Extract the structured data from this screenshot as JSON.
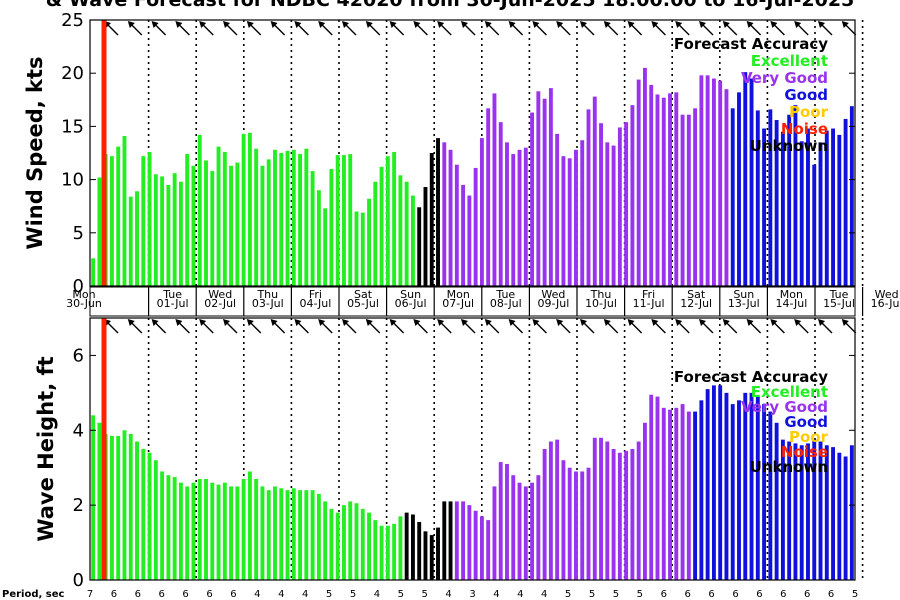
{
  "title": "& Wave Forecast for NDBC 42020 from 30-Jun-2025 18:00:00 to 16-Jul-2025",
  "colors": {
    "excellent": "#22ee22",
    "very_good": "#9933ee",
    "good": "#1111dd",
    "poor": "#ffcc00",
    "noise": "#ff2200",
    "unknown": "#000000"
  },
  "legend": {
    "title": "Forecast Accuracy",
    "items": [
      {
        "label": "Excellent",
        "color": "#22ee22"
      },
      {
        "label": "Very Good",
        "color": "#9933ee"
      },
      {
        "label": "Good",
        "color": "#1111dd"
      },
      {
        "label": "Poor",
        "color": "#ffcc00"
      },
      {
        "label": "Noise",
        "color": "#ff2200"
      },
      {
        "label": "Unknown",
        "color": "#000000"
      }
    ]
  },
  "days": [
    {
      "dow": "Mon",
      "date": "30-Jun"
    },
    {
      "dow": "Tue",
      "date": "01-Jul"
    },
    {
      "dow": "Wed",
      "date": "02-Jul"
    },
    {
      "dow": "Thu",
      "date": "03-Jul"
    },
    {
      "dow": "Fri",
      "date": "04-Jul"
    },
    {
      "dow": "Sat",
      "date": "05-Jul"
    },
    {
      "dow": "Sun",
      "date": "06-Jul"
    },
    {
      "dow": "Mon",
      "date": "07-Jul"
    },
    {
      "dow": "Tue",
      "date": "08-Jul"
    },
    {
      "dow": "Wed",
      "date": "09-Jul"
    },
    {
      "dow": "Thu",
      "date": "10-Jul"
    },
    {
      "dow": "Fri",
      "date": "11-Jul"
    },
    {
      "dow": "Sat",
      "date": "12-Jul"
    },
    {
      "dow": "Sun",
      "date": "13-Jul"
    },
    {
      "dow": "Mon",
      "date": "14-Jul"
    },
    {
      "dow": "Tue",
      "date": "15-Jul"
    },
    {
      "dow": "Wed",
      "date": "16-Jul"
    }
  ],
  "period_label": "Period, sec",
  "periods": [
    "7",
    "6",
    "6",
    "6",
    "6",
    "6",
    "6",
    "4",
    "4",
    "4",
    "5",
    "5",
    "4",
    "5",
    "5",
    "4",
    "3",
    "4",
    "4",
    "4",
    "5",
    "5",
    "5",
    "5",
    "6",
    "6",
    "6",
    "6",
    "6",
    "6",
    "6",
    "6",
    "5"
  ],
  "chart_data": [
    {
      "type": "bar",
      "name": "wind",
      "ylabel": "Wind Speed, kts",
      "ylim": [
        0,
        25
      ],
      "yticks": [
        0,
        5,
        10,
        15,
        20,
        25
      ],
      "values": [
        2.6,
        10.2,
        12.4,
        12.2,
        13.1,
        14.1,
        8.4,
        8.9,
        12.2,
        12.6,
        10.5,
        10.3,
        9.5,
        10.6,
        9.8,
        12.4,
        11.3,
        14.2,
        11.8,
        10.8,
        13.1,
        12.6,
        11.3,
        11.6,
        14.3,
        14.4,
        12.9,
        11.3,
        11.9,
        12.8,
        12.5,
        12.7,
        12.8,
        12.4,
        12.9,
        10.8,
        9.0,
        7.3,
        11.0,
        12.3,
        12.3,
        12.4,
        7.0,
        6.9,
        8.2,
        9.8,
        11.2,
        12.2,
        12.6,
        10.4,
        9.8,
        8.5,
        7.4,
        9.3,
        12.5,
        13.9,
        13.5,
        12.8,
        11.4,
        9.5,
        8.5,
        11.1,
        13.9,
        16.7,
        18.1,
        15.4,
        13.5,
        12.4,
        12.8,
        13.0,
        16.3,
        18.3,
        17.6,
        18.6,
        14.3,
        12.2,
        12.0,
        12.8,
        13.7,
        16.6,
        17.8,
        15.3,
        13.5,
        13.2,
        14.9,
        15.4,
        17.0,
        19.4,
        20.5,
        18.9,
        18.0,
        17.7,
        18.1,
        18.2,
        16.1,
        16.1,
        16.7,
        19.8,
        19.8,
        19.5,
        19.3,
        18.5,
        16.7,
        18.2,
        20.1,
        19.5,
        16.5,
        14.8,
        16.6,
        15.6,
        14.5,
        16.1,
        17.0,
        13.6,
        14.8,
        11.4,
        13.5,
        14.6,
        14.8,
        14.2,
        15.7,
        16.9
      ],
      "accuracy": [
        "excellent",
        52,
        "unknown",
        4,
        "very_good",
        46,
        "good",
        19
      ],
      "wind_dir_deg": 315
    },
    {
      "type": "bar",
      "name": "waves",
      "ylabel": "Wave Height, ft",
      "ylim": [
        0,
        7
      ],
      "yticks": [
        0,
        2,
        4,
        6
      ],
      "values": [
        4.4,
        4.2,
        3.9,
        3.85,
        3.85,
        4.0,
        3.9,
        3.7,
        3.5,
        3.4,
        3.2,
        2.9,
        2.8,
        2.75,
        2.6,
        2.5,
        2.6,
        2.7,
        2.7,
        2.6,
        2.55,
        2.6,
        2.5,
        2.5,
        2.7,
        2.9,
        2.7,
        2.5,
        2.4,
        2.5,
        2.45,
        2.4,
        2.45,
        2.4,
        2.4,
        2.4,
        2.3,
        2.1,
        1.9,
        1.8,
        2.0,
        2.1,
        2.05,
        1.9,
        1.8,
        1.6,
        1.45,
        1.45,
        1.5,
        1.7,
        1.8,
        1.75,
        1.55,
        1.3,
        1.2,
        1.4,
        2.1,
        2.1,
        2.1,
        2.1,
        2.0,
        1.85,
        1.7,
        1.6,
        2.5,
        3.15,
        3.1,
        2.8,
        2.6,
        2.5,
        2.6,
        2.8,
        3.5,
        3.7,
        3.75,
        3.2,
        3.0,
        2.9,
        2.9,
        3.0,
        3.8,
        3.8,
        3.7,
        3.5,
        3.4,
        3.45,
        3.5,
        3.7,
        4.2,
        4.95,
        4.9,
        4.6,
        4.55,
        4.6,
        4.7,
        4.5,
        4.5,
        4.8,
        5.1,
        5.2,
        5.2,
        5.0,
        4.7,
        4.8,
        5.0,
        5.0,
        4.9,
        4.7,
        4.5,
        4.2,
        3.75,
        3.7,
        3.65,
        3.6,
        3.65,
        3.75,
        3.7,
        3.6,
        3.55,
        3.4,
        3.3,
        3.6
      ],
      "accuracy": [
        "excellent",
        50,
        "unknown",
        8,
        "very_good",
        38,
        "good",
        24
      ],
      "wind_dir_deg": 315
    }
  ]
}
